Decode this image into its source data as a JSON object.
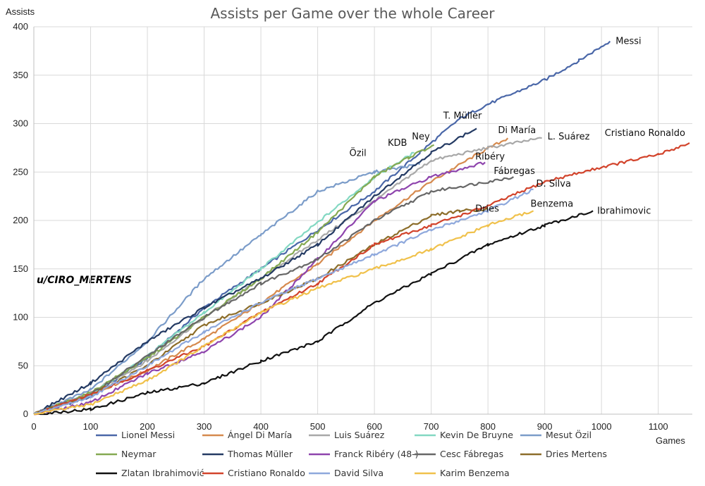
{
  "chart_data": {
    "type": "line",
    "title": "Assists per Game over the whole Career",
    "xlabel": "Games",
    "ylabel": "Assists",
    "xlim": [
      0,
      1160
    ],
    "ylim": [
      0,
      400
    ],
    "xticks": [
      "0",
      "100",
      "200",
      "300",
      "400",
      "500",
      "600",
      "700",
      "800",
      "900",
      "1000",
      "1100"
    ],
    "yticks": [
      "0",
      "50",
      "100",
      "150",
      "200",
      "250",
      "300",
      "350",
      "400"
    ],
    "grid": true,
    "legend_position": "bottom",
    "watermark": "u/CIRO_MERTENS",
    "series": [
      {
        "name": "Lionel Messi",
        "end_label": "Messi",
        "color": "#4a67a8",
        "points": [
          [
            0,
            0
          ],
          [
            100,
            18
          ],
          [
            200,
            58
          ],
          [
            300,
            110
          ],
          [
            400,
            150
          ],
          [
            500,
            190
          ],
          [
            600,
            230
          ],
          [
            680,
            270
          ],
          [
            750,
            305
          ],
          [
            800,
            320
          ],
          [
            900,
            345
          ],
          [
            960,
            365
          ],
          [
            1015,
            385
          ]
        ]
      },
      {
        "name": "Ángel Di María",
        "end_label": "Di María",
        "color": "#d68a4e",
        "points": [
          [
            0,
            0
          ],
          [
            100,
            20
          ],
          [
            200,
            45
          ],
          [
            300,
            78
          ],
          [
            400,
            115
          ],
          [
            500,
            155
          ],
          [
            600,
            200
          ],
          [
            700,
            240
          ],
          [
            780,
            268
          ],
          [
            835,
            285
          ]
        ]
      },
      {
        "name": "Luis Suárez",
        "end_label": "L. Suárez",
        "color": "#a8a8a8",
        "points": [
          [
            0,
            0
          ],
          [
            100,
            22
          ],
          [
            200,
            55
          ],
          [
            300,
            100
          ],
          [
            400,
            140
          ],
          [
            500,
            180
          ],
          [
            600,
            220
          ],
          [
            700,
            262
          ],
          [
            800,
            275
          ],
          [
            895,
            285
          ]
        ]
      },
      {
        "name": "Kevin De Bruyne",
        "end_label": "KDB",
        "color": "#83d8c2",
        "points": [
          [
            0,
            0
          ],
          [
            100,
            20
          ],
          [
            200,
            60
          ],
          [
            300,
            105
          ],
          [
            400,
            150
          ],
          [
            500,
            198
          ],
          [
            600,
            245
          ],
          [
            670,
            270
          ]
        ]
      },
      {
        "name": "Mesut Özil",
        "end_label": "Özil",
        "color": "#7b9cc9",
        "points": [
          [
            0,
            0
          ],
          [
            100,
            25
          ],
          [
            200,
            75
          ],
          [
            300,
            140
          ],
          [
            400,
            185
          ],
          [
            500,
            230
          ],
          [
            600,
            250
          ],
          [
            650,
            255
          ],
          [
            680,
            258
          ]
        ]
      },
      {
        "name": "Neymar",
        "end_label": "Ney",
        "color": "#85a952",
        "points": [
          [
            0,
            0
          ],
          [
            100,
            22
          ],
          [
            200,
            58
          ],
          [
            300,
            100
          ],
          [
            400,
            140
          ],
          [
            500,
            188
          ],
          [
            600,
            245
          ],
          [
            660,
            265
          ],
          [
            705,
            278
          ]
        ]
      },
      {
        "name": "Thomas Müller",
        "end_label": "T. Müller",
        "color": "#243a63",
        "points": [
          [
            0,
            0
          ],
          [
            100,
            32
          ],
          [
            200,
            75
          ],
          [
            300,
            110
          ],
          [
            400,
            140
          ],
          [
            500,
            175
          ],
          [
            600,
            225
          ],
          [
            700,
            270
          ],
          [
            780,
            295
          ]
        ]
      },
      {
        "name": "Franck Ribéry (48-)",
        "end_label": "Ribéry",
        "color": "#8e44ad",
        "points": [
          [
            0,
            0
          ],
          [
            100,
            12
          ],
          [
            200,
            42
          ],
          [
            300,
            65
          ],
          [
            400,
            100
          ],
          [
            500,
            160
          ],
          [
            600,
            220
          ],
          [
            700,
            245
          ],
          [
            795,
            260
          ]
        ]
      },
      {
        "name": "Cesc Fábregas",
        "end_label": "Fábregas",
        "color": "#676767",
        "points": [
          [
            0,
            0
          ],
          [
            100,
            20
          ],
          [
            200,
            60
          ],
          [
            300,
            100
          ],
          [
            400,
            135
          ],
          [
            500,
            160
          ],
          [
            600,
            200
          ],
          [
            700,
            230
          ],
          [
            800,
            240
          ],
          [
            845,
            245
          ]
        ]
      },
      {
        "name": "Dries Mertens",
        "end_label": "Dries",
        "color": "#8c6d2a",
        "points": [
          [
            0,
            0
          ],
          [
            100,
            20
          ],
          [
            200,
            50
          ],
          [
            300,
            92
          ],
          [
            400,
            115
          ],
          [
            500,
            140
          ],
          [
            600,
            175
          ],
          [
            700,
            205
          ],
          [
            750,
            210
          ],
          [
            805,
            212
          ]
        ]
      },
      {
        "name": "Zlatan Ibrahimović",
        "end_label": "Ibrahimovic",
        "color": "#111111",
        "points": [
          [
            0,
            0
          ],
          [
            100,
            5
          ],
          [
            200,
            22
          ],
          [
            300,
            32
          ],
          [
            400,
            55
          ],
          [
            500,
            75
          ],
          [
            600,
            115
          ],
          [
            700,
            145
          ],
          [
            800,
            175
          ],
          [
            900,
            195
          ],
          [
            985,
            210
          ]
        ]
      },
      {
        "name": "Cristiano Ronaldo",
        "end_label": "Cristiano Ronaldo",
        "color": "#d2432b",
        "points": [
          [
            0,
            0
          ],
          [
            100,
            20
          ],
          [
            200,
            45
          ],
          [
            300,
            70
          ],
          [
            400,
            105
          ],
          [
            500,
            135
          ],
          [
            600,
            175
          ],
          [
            700,
            195
          ],
          [
            800,
            215
          ],
          [
            900,
            240
          ],
          [
            1000,
            255
          ],
          [
            1100,
            268
          ],
          [
            1155,
            280
          ]
        ]
      },
      {
        "name": "David Silva",
        "end_label": "D. Silva",
        "color": "#8ea8dc",
        "points": [
          [
            0,
            0
          ],
          [
            100,
            18
          ],
          [
            200,
            50
          ],
          [
            300,
            85
          ],
          [
            400,
            115
          ],
          [
            500,
            140
          ],
          [
            600,
            165
          ],
          [
            700,
            190
          ],
          [
            800,
            210
          ],
          [
            880,
            232
          ]
        ]
      },
      {
        "name": "Karim Benzema",
        "end_label": "Benzema",
        "color": "#f0c14b",
        "points": [
          [
            0,
            0
          ],
          [
            100,
            10
          ],
          [
            200,
            35
          ],
          [
            300,
            70
          ],
          [
            400,
            105
          ],
          [
            500,
            130
          ],
          [
            600,
            150
          ],
          [
            700,
            170
          ],
          [
            800,
            195
          ],
          [
            880,
            210
          ]
        ]
      }
    ]
  }
}
